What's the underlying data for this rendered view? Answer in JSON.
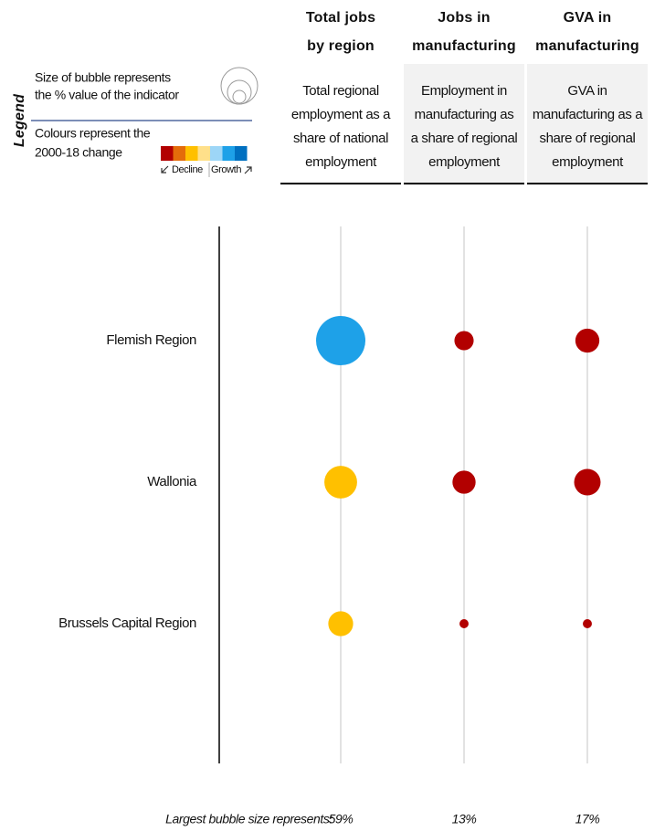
{
  "legend": {
    "title": "Legend",
    "size_text": [
      "Size of bubble represents",
      "the % value of the indicator"
    ],
    "color_text": [
      "Colours represent the",
      "2000-18 change"
    ],
    "decline": "Decline",
    "growth": "Growth",
    "colors": [
      "#b20000",
      "#e46c0a",
      "#ffc000",
      "#ffe08a",
      "#9dd6f7",
      "#1ea1e8",
      "#0070c0"
    ]
  },
  "chart_data": {
    "type": "bubble",
    "categories": [
      "Flemish Region",
      "Wallonia",
      "Brussels Capital Region"
    ],
    "series": [
      {
        "title_lines": [
          "Total jobs",
          "by region"
        ],
        "description": [
          "Total regional",
          "employment as a",
          "share of national",
          "employment"
        ],
        "values": [
          59,
          26,
          15
        ],
        "colors": [
          "#1ea1e8",
          "#ffc000",
          "#ffc000"
        ]
      },
      {
        "title_lines": [
          "Jobs in",
          "manufacturing"
        ],
        "description": [
          "Employment in",
          "manufacturing as",
          "a share of regional",
          "employment"
        ],
        "values": [
          9,
          13,
          2
        ],
        "colors": [
          "#b20000",
          "#b20000",
          "#b20000"
        ]
      },
      {
        "title_lines": [
          "GVA in",
          "manufacturing"
        ],
        "description": [
          "GVA in",
          "manufacturing as a",
          "share of regional",
          "employment"
        ],
        "values": [
          14,
          17,
          2
        ],
        "colors": [
          "#b20000",
          "#b20000",
          "#b20000"
        ]
      }
    ],
    "footer_label": "Largest bubble size represents:",
    "largest": [
      59,
      13,
      17
    ],
    "largest_labels": [
      "59%",
      "13%",
      "17%"
    ]
  }
}
